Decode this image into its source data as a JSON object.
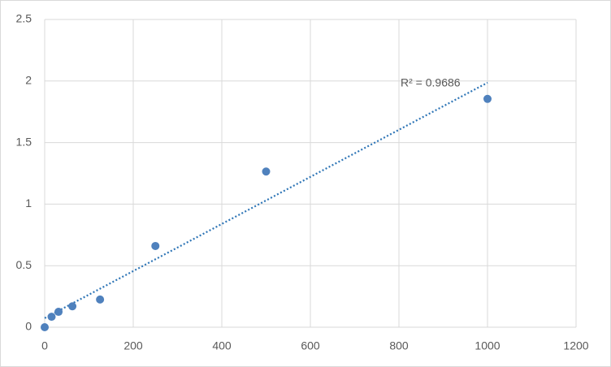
{
  "chart_data": {
    "type": "scatter",
    "series": [
      {
        "color": "#4f81bd",
        "x": [
          0,
          15.6,
          31.25,
          62.5,
          125,
          250,
          500,
          1000
        ],
        "values": [
          0,
          0.085,
          0.125,
          0.17,
          0.225,
          0.66,
          1.265,
          1.855
        ]
      }
    ],
    "trendline": {
      "type": "linear",
      "color": "#2e75b6"
    },
    "annotation": "R² = 0.9686",
    "xlim": [
      0,
      1200
    ],
    "xticks": [
      0,
      200,
      400,
      600,
      800,
      1000,
      1200
    ],
    "ylim": [
      0,
      2.5
    ],
    "yticks": [
      0,
      0.5,
      1,
      1.5,
      2,
      2.5
    ],
    "grid": true
  }
}
